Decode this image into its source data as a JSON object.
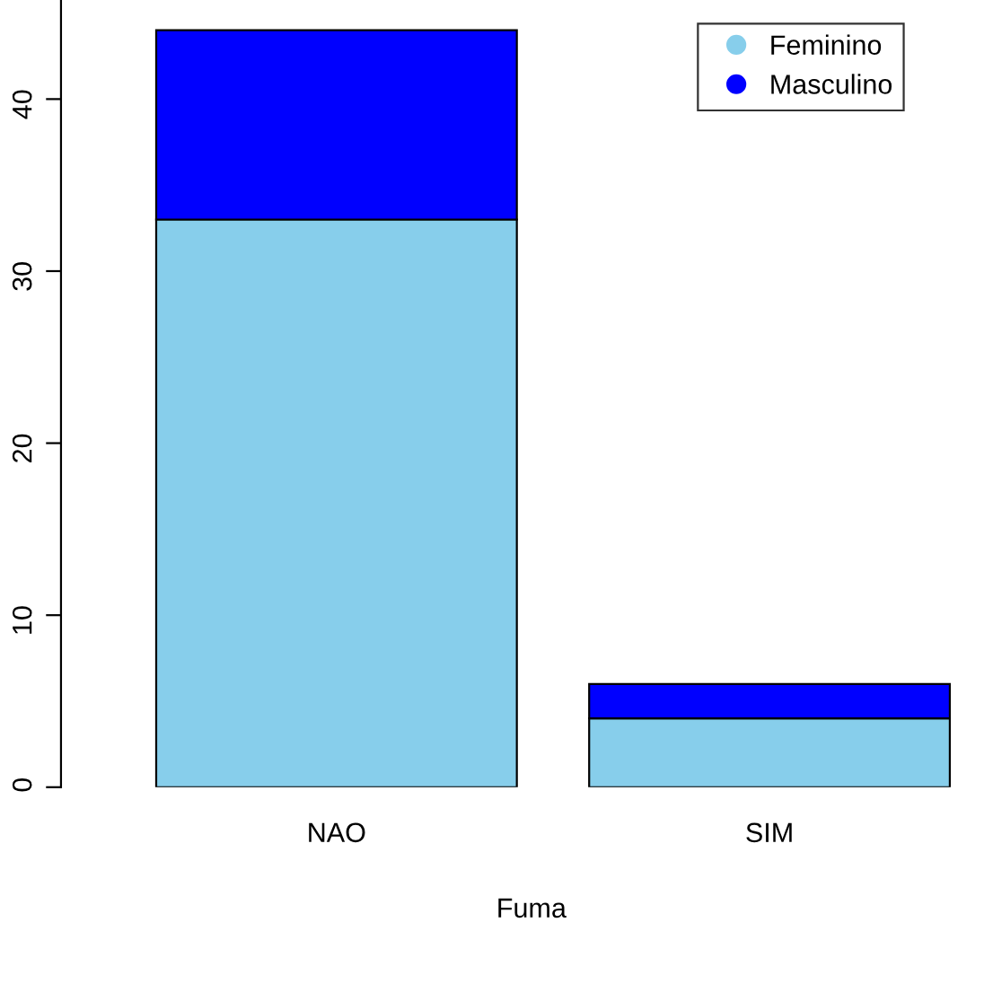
{
  "chart_data": {
    "type": "bar",
    "stacked": true,
    "xlabel": "Fuma",
    "categories": [
      "NAO",
      "SIM"
    ],
    "series": [
      {
        "name": "Feminino",
        "color": "#87ceeb",
        "values": [
          33,
          4
        ]
      },
      {
        "name": "Masculino",
        "color": "#0000ff",
        "values": [
          11,
          2
        ]
      }
    ],
    "ylim": [
      0,
      45.76
    ],
    "yticks": [
      0,
      10,
      20,
      30,
      40
    ],
    "grid": false,
    "legend": "top right"
  }
}
